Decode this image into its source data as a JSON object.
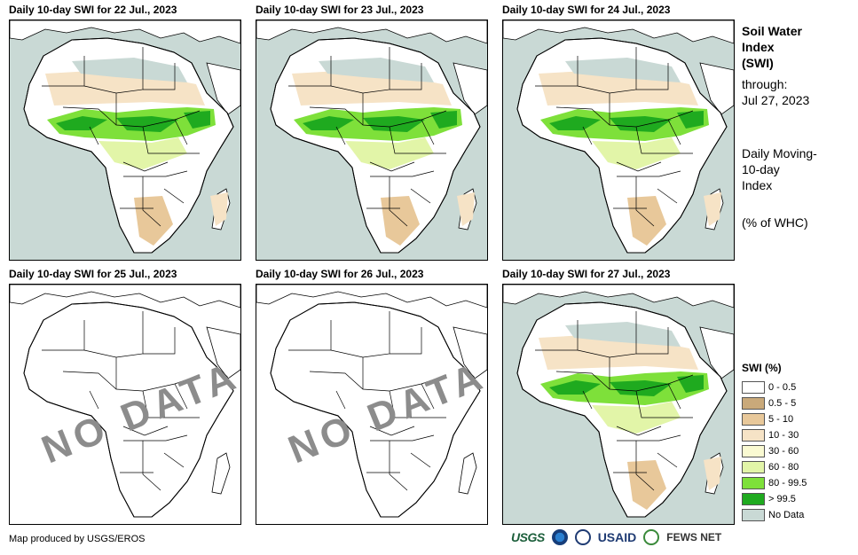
{
  "panels": [
    {
      "title": "Daily 10-day SWI for 22 Jul., 2023",
      "has_data": true
    },
    {
      "title": "Daily 10-day SWI for 23 Jul., 2023",
      "has_data": true
    },
    {
      "title": "Daily 10-day SWI for 24 Jul., 2023",
      "has_data": true
    },
    {
      "title": "Daily 10-day SWI for 25 Jul., 2023",
      "has_data": false,
      "overlay": "NO DATA"
    },
    {
      "title": "Daily 10-day SWI for 26 Jul., 2023",
      "has_data": false,
      "overlay": "NO DATA"
    },
    {
      "title": "Daily 10-day SWI for 27 Jul., 2023",
      "has_data": true
    }
  ],
  "side": {
    "title_line1": "Soil Water",
    "title_line2": "Index",
    "title_line3": "(SWI)",
    "through_label": "through:",
    "through_date": "Jul 27, 2023",
    "desc_line1": "Daily Moving-",
    "desc_line2": "10-day",
    "desc_line3": "Index",
    "units": "(% of WHC)"
  },
  "legend": {
    "title": "SWI (%)",
    "items": [
      {
        "label": "0 - 0.5",
        "color": "#ffffff"
      },
      {
        "label": "0.5 - 5",
        "color": "#c9a97a"
      },
      {
        "label": "5 - 10",
        "color": "#e8c89a"
      },
      {
        "label": "10 - 30",
        "color": "#f6e3c6"
      },
      {
        "label": "30 - 60",
        "color": "#fafad2"
      },
      {
        "label": "60 - 80",
        "color": "#e2f5a8"
      },
      {
        "label": "80 - 99.5",
        "color": "#7ee03a"
      },
      {
        "label": "> 99.5",
        "color": "#1faa1f"
      },
      {
        "label": "No Data",
        "color": "#c9d9d5"
      }
    ]
  },
  "credit": "Map produced by USGS/EROS",
  "logos": {
    "usgs": "USGS",
    "usaid": "USAID",
    "fews": "FEWS NET"
  },
  "colors": {
    "ocean": "#c9d9d5",
    "land": "#ffffff",
    "border": "#000000",
    "nodata_text": "#8c8c8c"
  }
}
